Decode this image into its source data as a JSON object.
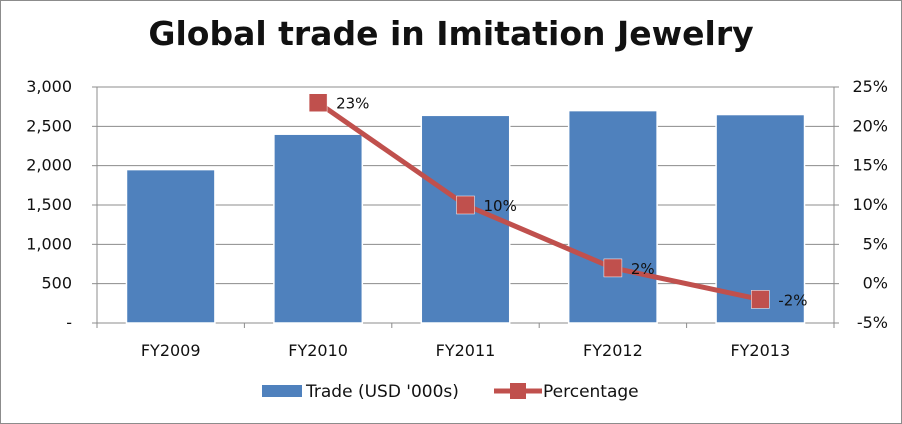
{
  "chart_data": {
    "type": "bar",
    "title": "Global trade in Imitation Jewelry",
    "categories": [
      "FY2009",
      "FY2010",
      "FY2011",
      "FY2012",
      "FY2013"
    ],
    "series": [
      {
        "name": "Trade (USD '000s)",
        "type": "bar",
        "axis": "left",
        "color": "#4f81bd",
        "values": [
          1950,
          2400,
          2640,
          2700,
          2650
        ]
      },
      {
        "name": "Percentage",
        "type": "line",
        "axis": "right",
        "color": "#c0504d",
        "values": [
          null,
          23,
          10,
          2,
          -2
        ],
        "data_labels": [
          "",
          "23%",
          "10%",
          "2%",
          "-2%"
        ]
      }
    ],
    "y_left": {
      "ylim": [
        0,
        3000
      ],
      "ticks": [
        0,
        500,
        1000,
        1500,
        2000,
        2500,
        3000
      ],
      "tick_labels": [
        "-",
        "500",
        "1,000",
        "1,500",
        "2,000",
        "2,500",
        "3,000"
      ]
    },
    "y_right": {
      "ylim": [
        -5,
        25
      ],
      "ticks": [
        -5,
        0,
        5,
        10,
        15,
        20,
        25
      ],
      "tick_labels": [
        "-5%",
        "0%",
        "5%",
        "10%",
        "15%",
        "20%",
        "25%"
      ]
    },
    "grid": true,
    "legend_position": "bottom"
  }
}
